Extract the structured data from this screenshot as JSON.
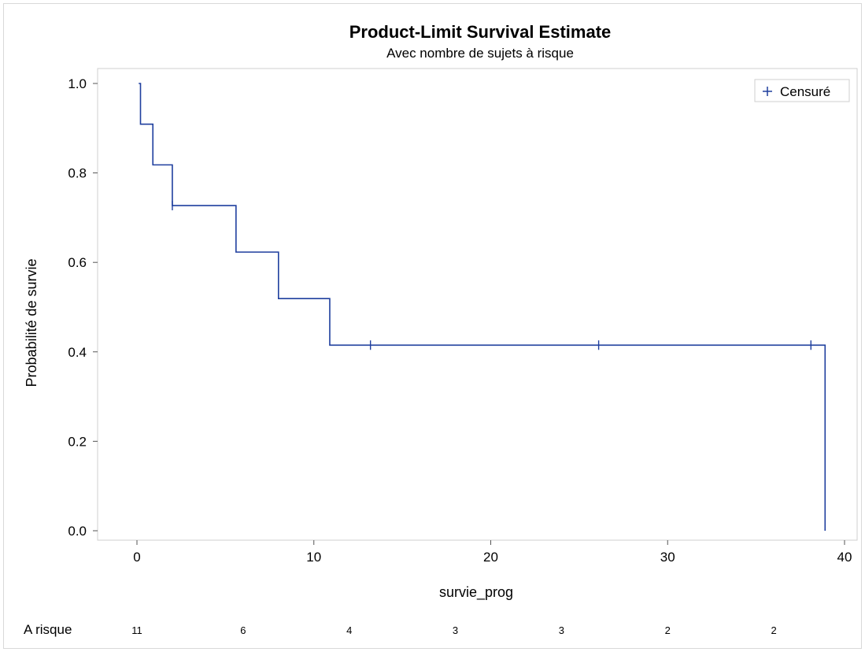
{
  "chart_data": {
    "type": "line",
    "title": "Product-Limit Survival Estimate",
    "subtitle": "Avec nombre de sujets à risque",
    "xlabel": "survie_prog",
    "ylabel": "Probabilité de survie",
    "xlim": [
      -2,
      40
    ],
    "ylim": [
      0,
      1
    ],
    "x_ticks": [
      0,
      10,
      20,
      30,
      40
    ],
    "y_ticks": [
      "0.0",
      "0.2",
      "0.4",
      "0.6",
      "0.8",
      "1.0"
    ],
    "grid": false,
    "legend": {
      "position": "top-right",
      "marker": "+",
      "label": "Censuré"
    },
    "series": [
      {
        "color": "#1f3f9e",
        "steps": [
          {
            "x": 0.1,
            "y": 1.0
          },
          {
            "x": 0.2,
            "y": 0.909
          },
          {
            "x": 0.9,
            "y": 0.818
          },
          {
            "x": 2.0,
            "y": 0.727
          },
          {
            "x": 5.6,
            "y": 0.623
          },
          {
            "x": 8.0,
            "y": 0.519
          },
          {
            "x": 10.9,
            "y": 0.415
          },
          {
            "x": 38.9,
            "y": 0.0
          }
        ],
        "end_x": 38.9,
        "censored": [
          {
            "x": 2.0,
            "y": 0.727
          },
          {
            "x": 13.2,
            "y": 0.415
          },
          {
            "x": 26.1,
            "y": 0.415
          },
          {
            "x": 38.1,
            "y": 0.415
          }
        ]
      }
    ],
    "at_risk": {
      "label": "A risque",
      "times": [
        0,
        6,
        12,
        18,
        24,
        30,
        36
      ],
      "counts": [
        "11",
        "6",
        "4",
        "3",
        "3",
        "2",
        "2"
      ]
    }
  }
}
